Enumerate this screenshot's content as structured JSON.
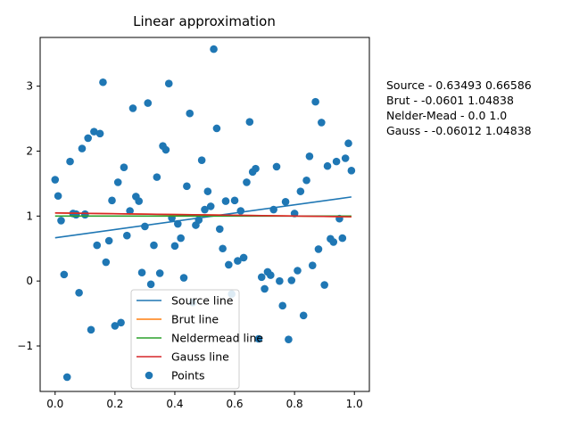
{
  "chart_data": {
    "type": "scatter",
    "title": "Linear approximation",
    "xlabel": "",
    "ylabel": "",
    "xlim": [
      -0.05,
      1.05
    ],
    "ylim": [
      -1.7,
      3.75
    ],
    "grid": false,
    "legend_position": "lower-center",
    "xticks": [
      0.0,
      0.2,
      0.4,
      0.6,
      0.8,
      1.0
    ],
    "xtick_labels": [
      "0.0",
      "0.2",
      "0.4",
      "0.6",
      "0.8",
      "1.0"
    ],
    "yticks": [
      -1,
      0,
      1,
      2,
      3
    ],
    "ytick_labels": [
      "−1",
      "0",
      "1",
      "2",
      "3"
    ],
    "lines": [
      {
        "name": "Source line",
        "color": "#1f77b4",
        "slope": 0.63493,
        "intercept": 0.66586
      },
      {
        "name": "Brut line",
        "color": "#ff7f0e",
        "slope": -0.0601,
        "intercept": 1.04838
      },
      {
        "name": "Neldermead line",
        "color": "#2ca02c",
        "slope": 0.0,
        "intercept": 1.0
      },
      {
        "name": "Gauss line",
        "color": "#d62728",
        "slope": -0.06012,
        "intercept": 1.04838
      }
    ],
    "points_series": {
      "name": "Points",
      "color": "#1f77b4",
      "x": [
        0.0,
        0.01,
        0.02,
        0.03,
        0.04,
        0.05,
        0.06,
        0.07,
        0.08,
        0.09,
        0.1,
        0.11,
        0.12,
        0.13,
        0.14,
        0.15,
        0.16,
        0.17,
        0.18,
        0.19,
        0.2,
        0.21,
        0.22,
        0.23,
        0.24,
        0.25,
        0.26,
        0.27,
        0.28,
        0.29,
        0.3,
        0.31,
        0.32,
        0.33,
        0.34,
        0.35,
        0.36,
        0.37,
        0.38,
        0.39,
        0.4,
        0.41,
        0.42,
        0.43,
        0.44,
        0.45,
        0.46,
        0.47,
        0.48,
        0.49,
        0.5,
        0.51,
        0.52,
        0.53,
        0.54,
        0.55,
        0.56,
        0.57,
        0.58,
        0.59,
        0.6,
        0.61,
        0.62,
        0.63,
        0.64,
        0.65,
        0.66,
        0.67,
        0.68,
        0.69,
        0.7,
        0.71,
        0.72,
        0.73,
        0.74,
        0.75,
        0.76,
        0.77,
        0.78,
        0.79,
        0.8,
        0.81,
        0.82,
        0.83,
        0.84,
        0.85,
        0.86,
        0.87,
        0.88,
        0.89,
        0.9,
        0.91,
        0.92,
        0.93,
        0.94,
        0.95,
        0.96,
        0.97,
        0.98,
        0.99,
        0.1,
        0.07
      ],
      "y": [
        1.56,
        1.31,
        0.93,
        0.1,
        -1.48,
        1.84,
        1.04,
        1.03,
        -0.18,
        2.04,
        1.02,
        2.2,
        -0.75,
        2.3,
        0.55,
        2.27,
        3.06,
        0.29,
        0.62,
        1.24,
        -0.69,
        1.52,
        -0.64,
        1.75,
        0.7,
        1.08,
        2.66,
        1.3,
        1.23,
        0.13,
        0.84,
        2.74,
        -0.05,
        0.55,
        1.6,
        0.12,
        2.08,
        2.02,
        3.04,
        0.97,
        0.54,
        0.88,
        0.66,
        0.05,
        1.46,
        2.58,
        -0.33,
        0.86,
        0.94,
        1.86,
        1.1,
        1.38,
        1.15,
        3.57,
        2.35,
        0.8,
        0.5,
        1.23,
        0.25,
        -0.2,
        1.24,
        0.31,
        1.08,
        0.36,
        1.52,
        2.45,
        1.68,
        1.73,
        -0.89,
        0.06,
        -0.12,
        0.14,
        0.09,
        1.1,
        1.76,
        0.0,
        -0.38,
        1.22,
        -0.9,
        0.01,
        1.04,
        0.16,
        1.38,
        -0.53,
        1.55,
        1.92,
        0.24,
        2.76,
        0.49,
        2.44,
        -0.06,
        1.77,
        0.65,
        0.6,
        1.84,
        0.96,
        0.66,
        1.89,
        2.12,
        1.7,
        1.03,
        1.02
      ]
    },
    "legend_entries": [
      "Source line",
      "Brut line",
      "Neldermead line",
      "Gauss line",
      "Points"
    ]
  },
  "side_note": {
    "lines": [
      "Source - 0.63493 0.66586",
      "Brut - -0.0601 1.04838",
      "Nelder-Mead - 0.0 1.0",
      "Gauss - -0.06012 1.04838"
    ]
  }
}
